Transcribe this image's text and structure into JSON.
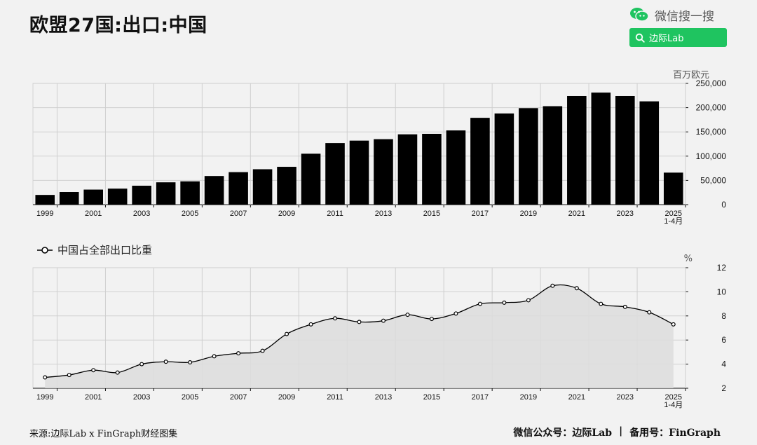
{
  "title": "欧盟27国:出口:中国",
  "brand": {
    "wechat_label": "微信搜一搜",
    "search_label": "边际Lab",
    "accent": "#1fc460"
  },
  "footer": {
    "source": "来源:边际Lab x FinGraph财经图集",
    "right_a": "微信公众号：边际Lab",
    "sep": "|",
    "right_b": "备用号：FinGraph"
  },
  "chart_data": [
    {
      "type": "bar",
      "unit": "百万欧元",
      "categories": [
        "1999",
        "2000",
        "2001",
        "2002",
        "2003",
        "2004",
        "2005",
        "2006",
        "2007",
        "2008",
        "2009",
        "2010",
        "2011",
        "2012",
        "2013",
        "2014",
        "2015",
        "2016",
        "2017",
        "2018",
        "2019",
        "2020",
        "2021",
        "2022",
        "2023",
        "2024",
        "2025 1-4月"
      ],
      "x_tick_labels": [
        "1999",
        "2001",
        "2003",
        "2005",
        "2007",
        "2009",
        "2011",
        "2013",
        "2015",
        "2017",
        "2019",
        "2021",
        "2023",
        "2025"
      ],
      "last_tick_sublabel": "1-4月",
      "values": [
        20000,
        26000,
        31000,
        33000,
        39000,
        46000,
        48000,
        59000,
        67000,
        73000,
        78000,
        105000,
        127000,
        132000,
        135000,
        145000,
        146000,
        153000,
        179000,
        188000,
        199000,
        203000,
        224000,
        231000,
        224000,
        213000,
        66000
      ],
      "ylim": [
        0,
        250000
      ],
      "yticks": [
        "0",
        "50,000",
        "100,000",
        "150,000",
        "200,000",
        "250,000"
      ],
      "color": "#000000"
    },
    {
      "type": "area",
      "unit": "%",
      "series": [
        {
          "name": "中国占全部出口比重"
        }
      ],
      "categories": [
        "1999",
        "2000",
        "2001",
        "2002",
        "2003",
        "2004",
        "2005",
        "2006",
        "2007",
        "2008",
        "2009",
        "2010",
        "2011",
        "2012",
        "2013",
        "2014",
        "2015",
        "2016",
        "2017",
        "2018",
        "2019",
        "2020",
        "2021",
        "2022",
        "2023",
        "2024",
        "2025 1-4月"
      ],
      "x_tick_labels": [
        "1999",
        "2001",
        "2003",
        "2005",
        "2007",
        "2009",
        "2011",
        "2013",
        "2015",
        "2017",
        "2019",
        "2021",
        "2023",
        "2025"
      ],
      "last_tick_sublabel": "1-4月",
      "values": [
        2.9,
        3.1,
        3.5,
        3.3,
        4.0,
        4.2,
        4.15,
        4.65,
        4.9,
        5.1,
        6.5,
        7.3,
        7.8,
        7.5,
        7.6,
        8.1,
        7.75,
        8.2,
        9.0,
        9.1,
        9.3,
        10.5,
        10.3,
        9.0,
        8.75,
        8.3,
        7.3
      ],
      "ylim": [
        2,
        12
      ],
      "yticks": [
        "2",
        "4",
        "6",
        "8",
        "10",
        "12"
      ],
      "fill": "#dddddd",
      "line": "#000000"
    }
  ]
}
